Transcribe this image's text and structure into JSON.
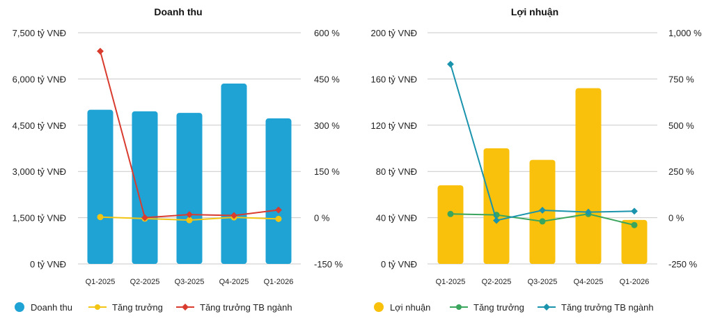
{
  "chart_data": [
    {
      "type": "bar",
      "title": "Doanh thu",
      "categories": [
        "Q1-2025",
        "Q2-2025",
        "Q3-2025",
        "Q4-2025",
        "Q1-2026"
      ],
      "y_left_ticks": [
        "0 tỷ VNĐ",
        "1,500 tỷ VNĐ",
        "3,000 tỷ VNĐ",
        "4,500 tỷ VNĐ",
        "6,000 tỷ VNĐ",
        "7,500 tỷ VNĐ"
      ],
      "y_right_ticks": [
        "-150 %",
        "0 %",
        "150 %",
        "300 %",
        "450 %",
        "600 %"
      ],
      "ylim_left": [
        0,
        7500
      ],
      "ylim_right": [
        -150,
        600
      ],
      "grid": true,
      "legend_position": "bottom",
      "series": [
        {
          "name": "Doanh thu",
          "kind": "bar",
          "axis": "left",
          "color": "#1ea3d4",
          "values": [
            5000,
            4950,
            4900,
            5850,
            4720
          ]
        },
        {
          "name": "Tăng trưởng",
          "kind": "line",
          "axis": "right",
          "color": "#f2c515",
          "marker": "circle",
          "values": [
            2,
            -3,
            -8,
            1,
            -4
          ]
        },
        {
          "name": "Tăng trưởng TB ngành",
          "kind": "line",
          "axis": "right",
          "color": "#d93b2e",
          "marker": "diamond",
          "values": [
            540,
            0,
            10,
            7,
            25
          ]
        }
      ]
    },
    {
      "type": "bar",
      "title": "Lợi nhuận",
      "categories": [
        "Q1-2025",
        "Q2-2025",
        "Q3-2025",
        "Q4-2025",
        "Q1-2026"
      ],
      "y_left_ticks": [
        "0 tỷ VNĐ",
        "40 tỷ VNĐ",
        "80 tỷ VNĐ",
        "120 tỷ VNĐ",
        "160 tỷ VNĐ",
        "200 tỷ VNĐ"
      ],
      "y_right_ticks": [
        "-250 %",
        "0 %",
        "250 %",
        "500 %",
        "750 %",
        "1,000 %"
      ],
      "ylim_left": [
        0,
        200
      ],
      "ylim_right": [
        -250,
        1000
      ],
      "grid": true,
      "legend_position": "bottom",
      "series": [
        {
          "name": "Lợi nhuận",
          "kind": "bar",
          "axis": "left",
          "color": "#f9c10b",
          "values": [
            68,
            100,
            90,
            152,
            38
          ]
        },
        {
          "name": "Tăng trưởng",
          "kind": "line",
          "axis": "right",
          "color": "#3aa65d",
          "marker": "circle",
          "values": [
            20,
            15,
            -20,
            20,
            -40
          ]
        },
        {
          "name": "Tăng trưởng TB ngành",
          "kind": "line",
          "axis": "right",
          "color": "#1a93ad",
          "marker": "diamond",
          "values": [
            830,
            -15,
            40,
            30,
            35
          ]
        }
      ]
    }
  ]
}
